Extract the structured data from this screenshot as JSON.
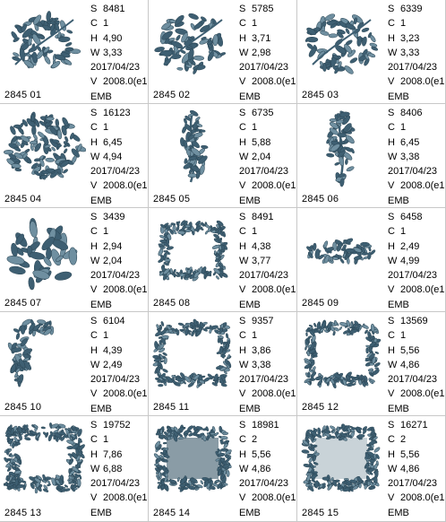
{
  "colors": {
    "thread": "#3e5f72",
    "thread_light": "#6f8fa0",
    "fill": "#8a9ca6",
    "border": "#c8c8c8"
  },
  "tiles": [
    {
      "caption": "2845 01",
      "s": "8481",
      "c": "1",
      "h": "4,90",
      "w": "3,33",
      "date": "2017/04/23",
      "v": "2008.0(e1",
      "fmt": "EMB",
      "design": "floral-cluster"
    },
    {
      "caption": "2845 02",
      "s": "5785",
      "c": "1",
      "h": "3,71",
      "w": "2,98",
      "date": "2017/04/23",
      "v": "2008.0(e1",
      "fmt": "EMB",
      "design": "floral-cluster"
    },
    {
      "caption": "2845 03",
      "s": "6339",
      "c": "1",
      "h": "3,23",
      "w": "3,33",
      "date": "2017/04/23",
      "v": "2008.0(e1",
      "fmt": "EMB",
      "design": "floral-cluster"
    },
    {
      "caption": "2845 04",
      "s": "16123",
      "c": "1",
      "h": "6,45",
      "w": "4,94",
      "date": "2017/04/23",
      "v": "2008.0(e1",
      "fmt": "EMB",
      "design": "floral-dense"
    },
    {
      "caption": "2845 05",
      "s": "6735",
      "c": "1",
      "h": "5,88",
      "w": "2,04",
      "date": "2017/04/23",
      "v": "2008.0(e1",
      "fmt": "EMB",
      "design": "floral-vertical"
    },
    {
      "caption": "2845 06",
      "s": "8406",
      "c": "1",
      "h": "6,45",
      "w": "3,38",
      "date": "2017/04/23",
      "v": "2008.0(e1",
      "fmt": "EMB",
      "design": "floral-vertical"
    },
    {
      "caption": "2845 07",
      "s": "3439",
      "c": "1",
      "h": "2,94",
      "w": "2,04",
      "date": "2017/04/23",
      "v": "2008.0(e1",
      "fmt": "EMB",
      "design": "floral-leaves"
    },
    {
      "caption": "2845 08",
      "s": "8491",
      "c": "1",
      "h": "4,38",
      "w": "3,77",
      "date": "2017/04/23",
      "v": "2008.0(e1",
      "fmt": "EMB",
      "design": "frame-open"
    },
    {
      "caption": "2845 09",
      "s": "6458",
      "c": "1",
      "h": "2,49",
      "w": "4,99",
      "date": "2017/04/23",
      "v": "2008.0(e1",
      "fmt": "EMB",
      "design": "floral-horizontal"
    },
    {
      "caption": "2845 10",
      "s": "6104",
      "c": "1",
      "h": "4,39",
      "w": "2,49",
      "date": "2017/04/23",
      "v": "2008.0(e1",
      "fmt": "EMB",
      "design": "corner"
    },
    {
      "caption": "2845 11",
      "s": "9357",
      "c": "1",
      "h": "3,86",
      "w": "3,38",
      "date": "2017/04/23",
      "v": "2008.0(e1",
      "fmt": "EMB",
      "design": "frame"
    },
    {
      "caption": "2845 12",
      "s": "13569",
      "c": "1",
      "h": "5,56",
      "w": "4,86",
      "date": "2017/04/23",
      "v": "2008.0(e1",
      "fmt": "EMB",
      "design": "frame"
    },
    {
      "caption": "2845 13",
      "s": "19752",
      "c": "1",
      "h": "7,86",
      "w": "6,88",
      "date": "2017/04/23",
      "v": "2008.0(e1",
      "fmt": "EMB",
      "design": "frame-thick"
    },
    {
      "caption": "2845 14",
      "s": "18981",
      "c": "2",
      "h": "5,56",
      "w": "4,86",
      "date": "2017/04/23",
      "v": "2008.0(e1",
      "fmt": "EMB",
      "design": "frame-filled"
    },
    {
      "caption": "2845 15",
      "s": "16271",
      "c": "2",
      "h": "5,56",
      "w": "4,86",
      "date": "2017/04/23",
      "v": "2008.0(e1",
      "fmt": "EMB",
      "design": "frame-filled-light"
    }
  ],
  "labels": {
    "s": "S",
    "c": "C",
    "h": "H",
    "w": "W",
    "v": "V"
  }
}
